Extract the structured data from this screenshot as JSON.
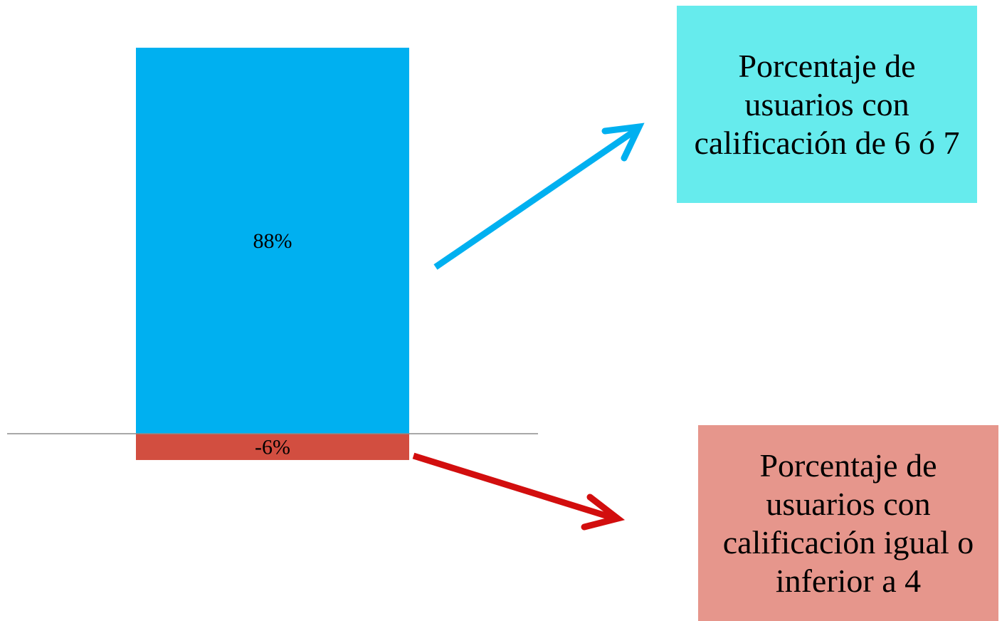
{
  "chart_data": {
    "type": "bar",
    "categories": [
      ""
    ],
    "series": [
      {
        "values": [
          88
        ],
        "color": "#00b0f0",
        "data_label": "88%"
      },
      {
        "values": [
          -6
        ],
        "color": "#d24e40",
        "data_label": "-6%"
      }
    ],
    "ylim": [
      -6,
      88
    ],
    "grid": false,
    "title": "",
    "xlabel": "",
    "ylabel": ""
  },
  "callouts": {
    "positive": {
      "text": "Porcentaje de usuarios con calificación de 6 ó 7",
      "background": "#66ebed",
      "arrow_color": "#00b0f0"
    },
    "negative": {
      "text": "Porcentaje de usuarios con calificación igual o inferior a 4",
      "background": "#e6968c",
      "arrow_color": "#d20e0e"
    }
  },
  "colors": {
    "axis_line": "#8c8c8c",
    "label_text": "#000000"
  }
}
